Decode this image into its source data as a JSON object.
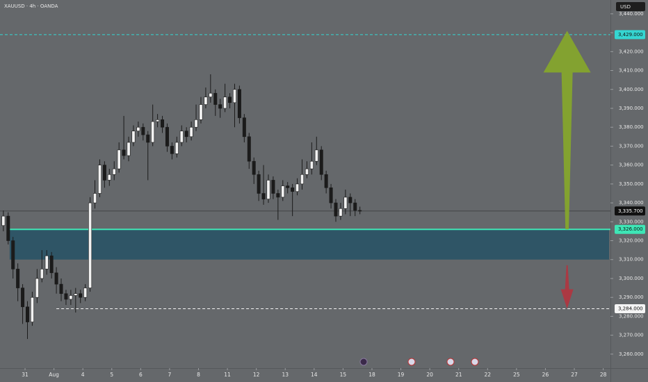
{
  "chart_data": {
    "type": "candlestick",
    "title": "XAUUSD · 4h · OANDA",
    "currency": "USD",
    "up_color": "#f2f2f2",
    "down_color": "#1b1b1b",
    "open": [
      3328,
      3333,
      3320,
      3305,
      3295,
      3285,
      3277,
      3290,
      3300,
      3305,
      3312,
      3303,
      3297,
      3292,
      3289,
      3291,
      3292,
      3290,
      3295,
      3340,
      3345,
      3360,
      3352,
      3355,
      3358,
      3368,
      3365,
      3372,
      3378,
      3380,
      3376,
      3372,
      3383,
      3384,
      3380,
      3370,
      3366,
      3372,
      3378,
      3375,
      3380,
      3384,
      3392,
      3396,
      3398,
      3392,
      3390,
      3396,
      3393,
      3400,
      3385,
      3375,
      3362,
      3355,
      3345,
      3342,
      3352,
      3345,
      3343,
      3349,
      3348,
      3346,
      3350,
      3355,
      3358,
      3362,
      3368,
      3355,
      3348,
      3340,
      3333,
      3337,
      3343,
      3340,
      3336
    ],
    "high": [
      3336,
      3335,
      3322,
      3308,
      3297,
      3288,
      3293,
      3305,
      3315,
      3315,
      3314,
      3306,
      3300,
      3294,
      3294,
      3295,
      3294,
      3297,
      3343,
      3352,
      3363,
      3362,
      3358,
      3362,
      3372,
      3386,
      3375,
      3381,
      3383,
      3382,
      3378,
      3392,
      3387,
      3386,
      3382,
      3372,
      3375,
      3381,
      3380,
      3383,
      3392,
      3396,
      3401,
      3408,
      3400,
      3395,
      3403,
      3398,
      3403,
      3402,
      3387,
      3377,
      3364,
      3357,
      3360,
      3355,
      3354,
      3347,
      3352,
      3351,
      3350,
      3353,
      3363,
      3362,
      3372,
      3375,
      3370,
      3357,
      3350,
      3342,
      3340,
      3347,
      3345,
      3342,
      3338
    ],
    "low": [
      3325,
      3318,
      3300,
      3288,
      3276,
      3268,
      3275,
      3287,
      3298,
      3302,
      3300,
      3292,
      3288,
      3286,
      3286,
      3282,
      3287,
      3288,
      3293,
      3337,
      3343,
      3348,
      3349,
      3352,
      3356,
      3363,
      3362,
      3370,
      3375,
      3373,
      3352,
      3370,
      3380,
      3377,
      3367,
      3363,
      3364,
      3370,
      3372,
      3373,
      3378,
      3382,
      3390,
      3393,
      3386,
      3385,
      3388,
      3390,
      3380,
      3382,
      3372,
      3358,
      3350,
      3341,
      3339,
      3340,
      3342,
      3331,
      3341,
      3345,
      3333,
      3344,
      3347,
      3353,
      3355,
      3360,
      3352,
      3345,
      3337,
      3330,
      3331,
      3334,
      3333,
      3333,
      3334
    ],
    "close": [
      3333,
      3320,
      3305,
      3295,
      3285,
      3277,
      3290,
      3300,
      3305,
      3312,
      3303,
      3297,
      3292,
      3289,
      3291,
      3292,
      3290,
      3295,
      3340,
      3345,
      3360,
      3352,
      3355,
      3358,
      3368,
      3365,
      3372,
      3378,
      3380,
      3376,
      3372,
      3383,
      3384,
      3380,
      3370,
      3366,
      3372,
      3378,
      3375,
      3380,
      3384,
      3392,
      3396,
      3398,
      3392,
      3390,
      3396,
      3393,
      3400,
      3385,
      3375,
      3362,
      3355,
      3345,
      3342,
      3352,
      3345,
      3343,
      3349,
      3348,
      3346,
      3350,
      3355,
      3358,
      3362,
      3368,
      3355,
      3348,
      3340,
      3333,
      3337,
      3343,
      3340,
      3336,
      3335.7
    ],
    "xlim": [
      -0.7,
      126
    ],
    "xticks": [
      {
        "value": 4.5,
        "label": "31"
      },
      {
        "value": 10.5,
        "label": "Aug"
      },
      {
        "value": 16.5,
        "label": "4"
      },
      {
        "value": 22.5,
        "label": "5"
      },
      {
        "value": 28.5,
        "label": "6"
      },
      {
        "value": 34.5,
        "label": "7"
      },
      {
        "value": 40.5,
        "label": "8"
      },
      {
        "value": 46.5,
        "label": "11"
      },
      {
        "value": 52.5,
        "label": "12"
      },
      {
        "value": 58.5,
        "label": "13"
      },
      {
        "value": 64.5,
        "label": "14"
      },
      {
        "value": 70.5,
        "label": "15"
      },
      {
        "value": 76.5,
        "label": "18"
      },
      {
        "value": 82.5,
        "label": "19"
      },
      {
        "value": 88.5,
        "label": "20"
      },
      {
        "value": 94.5,
        "label": "21"
      },
      {
        "value": 100.5,
        "label": "22"
      },
      {
        "value": 106.5,
        "label": "25"
      },
      {
        "value": 112.5,
        "label": "26"
      },
      {
        "value": 118.5,
        "label": "27"
      },
      {
        "value": 124.5,
        "label": "28"
      }
    ],
    "ylim": [
      3252.6,
      3447.3
    ],
    "yticks": [
      {
        "value": 3260,
        "label": "3,260.000"
      },
      {
        "value": 3270,
        "label": "3,270.000"
      },
      {
        "value": 3280,
        "label": "3,280.000"
      },
      {
        "value": 3290,
        "label": "3,290.000"
      },
      {
        "value": 3300,
        "label": "3,300.000"
      },
      {
        "value": 3310,
        "label": "3,310.000"
      },
      {
        "value": 3320,
        "label": "3,320.000"
      },
      {
        "value": 3330,
        "label": "3,330.000"
      },
      {
        "value": 3340,
        "label": "3,340.000"
      },
      {
        "value": 3350,
        "label": "3,350.000"
      },
      {
        "value": 3360,
        "label": "3,360.000"
      },
      {
        "value": 3370,
        "label": "3,370.000"
      },
      {
        "value": 3380,
        "label": "3,380.000"
      },
      {
        "value": 3390,
        "label": "3,390.000"
      },
      {
        "value": 3400,
        "label": "3,400.000"
      },
      {
        "value": 3410,
        "label": "3,410.000"
      },
      {
        "value": 3420,
        "label": "3,420.000"
      },
      {
        "value": 3430,
        "label": "3,430.000"
      },
      {
        "value": 3440,
        "label": "3,440.000"
      }
    ],
    "zone": {
      "top": 3326,
      "bottom": 3310,
      "start": 1.3,
      "color": "#2f5566"
    },
    "levels": [
      {
        "value": 3429,
        "label": "3,429.000",
        "color": "#35d6d2",
        "style": "dashed"
      },
      {
        "value": 3326,
        "label": "3,326.000",
        "color": "#3ee6b6",
        "style": "solid",
        "start": 1.3
      },
      {
        "value": 3284,
        "label": "3,284.000",
        "color": "#f4f4f4",
        "style": "dashed",
        "start": 11
      }
    ],
    "last_price": {
      "value": 3335.7,
      "label": "3,335.700",
      "color": "#111111"
    },
    "arrows": [
      {
        "from": 3326,
        "to": 3431,
        "x": 117,
        "color": "#86a92a"
      },
      {
        "from": 3307,
        "to": 3284,
        "x": 117,
        "color": "#b3343f"
      }
    ]
  }
}
